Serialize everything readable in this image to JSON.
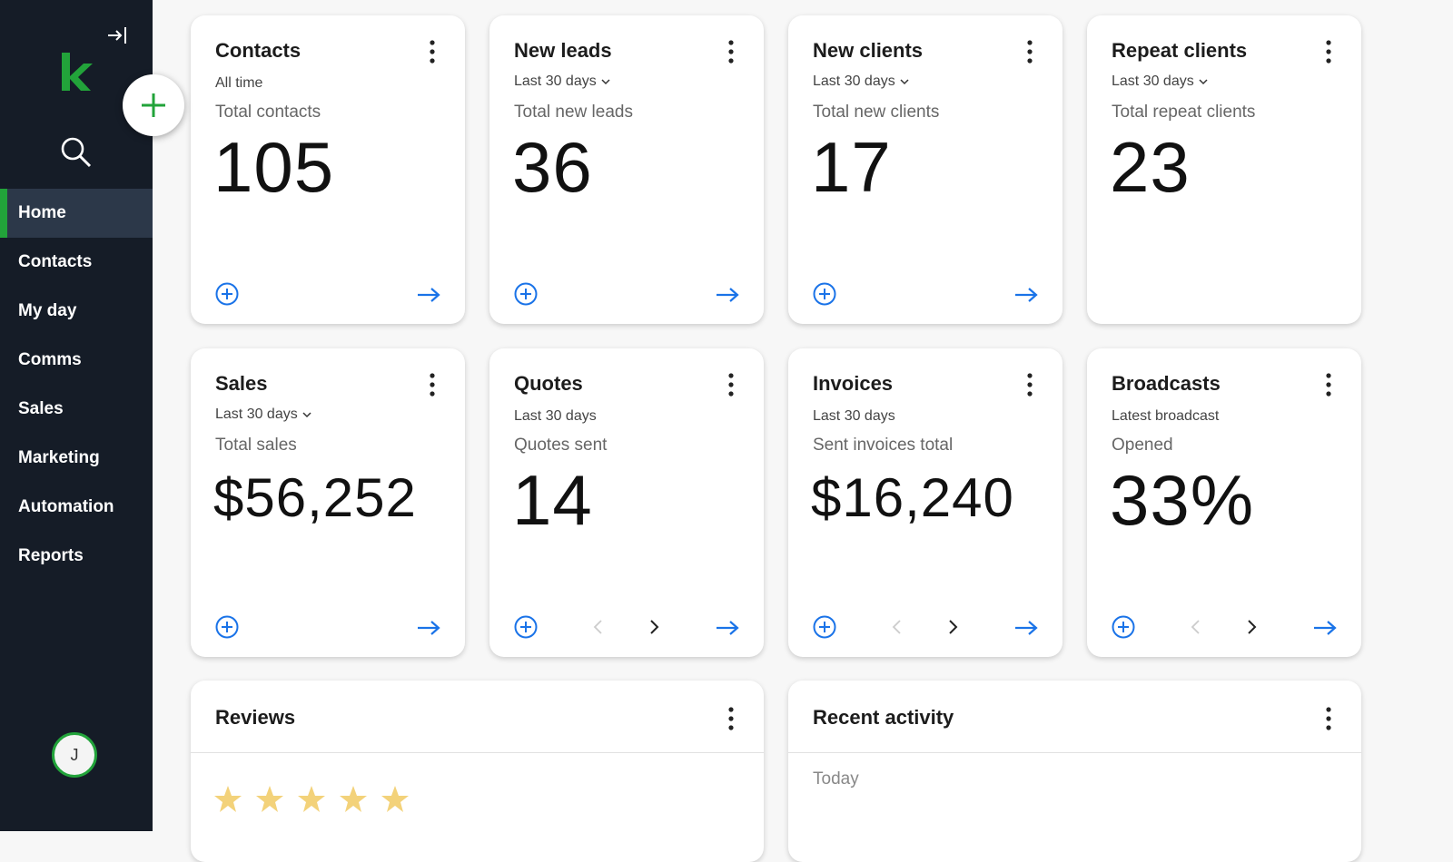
{
  "sidebar": {
    "items": [
      {
        "label": "Home",
        "active": true
      },
      {
        "label": "Contacts",
        "active": false
      },
      {
        "label": "My day",
        "active": false
      },
      {
        "label": "Comms",
        "active": false
      },
      {
        "label": "Sales",
        "active": false
      },
      {
        "label": "Marketing",
        "active": false
      },
      {
        "label": "Automation",
        "active": false
      },
      {
        "label": "Reports",
        "active": false
      }
    ],
    "avatar_initial": "J",
    "accent": "#22a33a",
    "background": "#151c27"
  },
  "cards": {
    "contacts": {
      "title": "Contacts",
      "period": "All time",
      "label": "Total contacts",
      "value": "105"
    },
    "new_leads": {
      "title": "New leads",
      "period": "Last 30 days",
      "label": "Total new leads",
      "value": "36"
    },
    "new_clients": {
      "title": "New clients",
      "period": "Last 30 days",
      "label": "Total new clients",
      "value": "17"
    },
    "repeat_clients": {
      "title": "Repeat clients",
      "period": "Last 30 days",
      "label": "Total repeat clients",
      "value": "23"
    },
    "sales": {
      "title": "Sales",
      "period": "Last 30 days",
      "label": "Total sales",
      "value": "$56,252"
    },
    "quotes": {
      "title": "Quotes",
      "period": "Last 30 days",
      "label": "Quotes sent",
      "value": "14"
    },
    "invoices": {
      "title": "Invoices",
      "period": "Last 30 days",
      "label": "Sent invoices total",
      "value": "$16,240"
    },
    "broadcasts": {
      "title": "Broadcasts",
      "period": "Latest broadcast",
      "label": "Opened",
      "value": "33%"
    }
  },
  "reviews": {
    "title": "Reviews",
    "star_count": 5
  },
  "recent_activity": {
    "title": "Recent activity",
    "group_label": "Today"
  },
  "colors": {
    "link_blue": "#1a73e8",
    "star": "#f3d27a"
  }
}
